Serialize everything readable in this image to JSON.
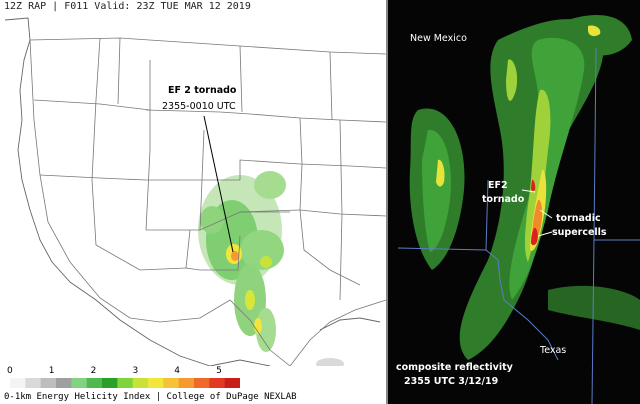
{
  "left_panel": {
    "header": "12Z RAP | F011 Valid: 23Z TUE MAR 12 2019",
    "annotation_line1": "EF 2 tornado",
    "annotation_line2": "2355-0010 UTC",
    "colorbar": {
      "ticks": [
        "0",
        "1",
        "2",
        "3",
        "4",
        "5"
      ],
      "colors": [
        "#f4f4f4",
        "#d9d9d9",
        "#bdbdbd",
        "#9f9f9f",
        "#82d282",
        "#4fb84f",
        "#2aa02a",
        "#7fd43a",
        "#c7e33a",
        "#f2e63a",
        "#f6c23a",
        "#f49a30",
        "#ef6a2a",
        "#e23a22",
        "#c82018"
      ],
      "caption": "0-1km  Energy Helicity Index | College of DuPage NEXLAB"
    }
  },
  "right_panel": {
    "label_new_mexico": "New Mexico",
    "label_texas": "Texas",
    "label_ef2_line1": "EF2",
    "label_ef2_line2": "tornado",
    "label_tornadic_line1": "tornadic",
    "label_tornadic_line2": "supercells",
    "caption_line1": "composite reflectivity",
    "caption_line2": "2355 UTC  3/12/19"
  }
}
